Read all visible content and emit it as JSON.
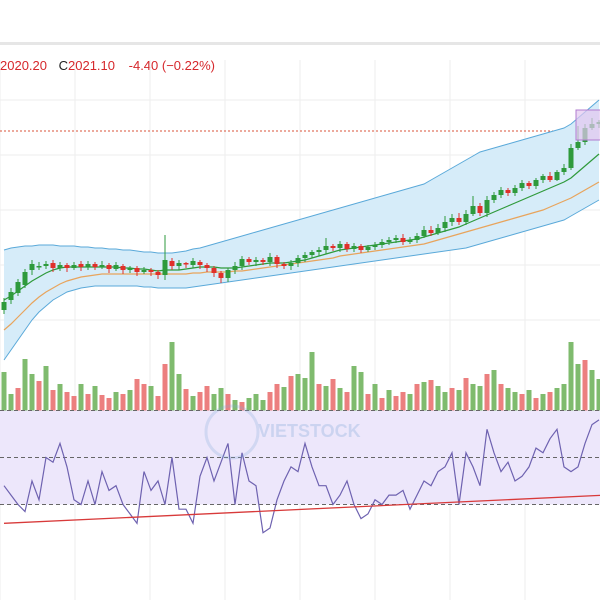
{
  "header": {
    "low_text": "2020.20",
    "close_prefix": "C",
    "close_text": "2021.10",
    "change_text": "-4.40 (−0.22%)"
  },
  "watermark": {
    "text": "VIETSTOCK"
  },
  "colors": {
    "up": "#2e9a3c",
    "down": "#e0302a",
    "vol_up": "#7fbb6e",
    "vol_down": "#ec7f7f",
    "band_fill": "#d6ecf9",
    "band_line": "#5aa9d9",
    "ma_fast": "#2f9a3b",
    "ma_slow": "#e8a45c",
    "rsi_line": "#6e62b0",
    "rsi_fill": "#ede7fb",
    "trend": "#d83a3a",
    "grid": "#eeeeee",
    "header_text": "#d6282c"
  },
  "chart_data": {
    "type": "candlestick",
    "candles": [
      [
        310,
        302,
        314,
        298
      ],
      [
        300,
        292,
        304,
        288
      ],
      [
        293,
        282,
        296,
        279
      ],
      [
        285,
        272,
        288,
        269
      ],
      [
        270,
        264,
        275,
        260
      ],
      [
        266,
        266,
        270,
        262
      ],
      [
        266,
        264,
        269,
        261
      ],
      [
        263,
        268,
        272,
        260
      ],
      [
        268,
        265,
        271,
        262
      ],
      [
        265,
        268,
        272,
        263
      ],
      [
        268,
        265,
        270,
        262
      ],
      [
        264,
        267,
        271,
        261
      ],
      [
        267,
        264,
        270,
        261
      ],
      [
        264,
        267,
        270,
        262
      ],
      [
        266,
        265,
        269,
        261
      ],
      [
        265,
        269,
        273,
        263
      ],
      [
        269,
        265,
        271,
        262
      ],
      [
        266,
        270,
        274,
        264
      ],
      [
        270,
        268,
        273,
        266
      ],
      [
        268,
        272,
        276,
        266
      ],
      [
        272,
        270,
        274,
        267
      ],
      [
        270,
        272,
        276,
        268
      ],
      [
        272,
        275,
        279,
        270
      ],
      [
        275,
        260,
        280,
        235
      ],
      [
        261,
        266,
        270,
        258
      ],
      [
        266,
        263,
        270,
        260
      ],
      [
        263,
        264,
        268,
        262
      ],
      [
        265,
        261,
        268,
        258
      ],
      [
        262,
        265,
        269,
        260
      ],
      [
        265,
        268,
        272,
        263
      ],
      [
        268,
        273,
        277,
        266
      ],
      [
        273,
        278,
        283,
        271
      ],
      [
        278,
        270,
        282,
        268
      ],
      [
        270,
        266,
        274,
        262
      ],
      [
        266,
        259,
        270,
        256
      ],
      [
        259,
        262,
        265,
        257
      ],
      [
        262,
        260,
        266,
        257
      ],
      [
        260,
        262,
        265,
        258
      ],
      [
        262,
        257,
        266,
        253
      ],
      [
        257,
        264,
        268,
        255
      ],
      [
        264,
        266,
        269,
        262
      ],
      [
        266,
        263,
        270,
        260
      ],
      [
        263,
        258,
        267,
        255
      ],
      [
        258,
        255,
        262,
        252
      ],
      [
        255,
        252,
        258,
        250
      ],
      [
        252,
        250,
        256,
        247
      ],
      [
        250,
        246,
        254,
        238
      ],
      [
        246,
        248,
        251,
        244
      ],
      [
        248,
        244,
        252,
        241
      ],
      [
        244,
        249,
        252,
        242
      ],
      [
        249,
        246,
        252,
        243
      ],
      [
        246,
        250,
        253,
        244
      ],
      [
        250,
        247,
        252,
        245
      ],
      [
        247,
        245,
        250,
        242
      ],
      [
        245,
        242,
        248,
        239
      ],
      [
        242,
        240,
        245,
        237
      ],
      [
        240,
        238,
        243,
        235
      ],
      [
        238,
        242,
        245,
        234
      ],
      [
        242,
        240,
        244,
        237
      ],
      [
        240,
        236,
        243,
        233
      ],
      [
        236,
        230,
        238,
        226
      ],
      [
        230,
        233,
        236,
        226
      ],
      [
        233,
        228,
        235,
        224
      ],
      [
        228,
        222,
        232,
        216
      ],
      [
        222,
        218,
        226,
        214
      ],
      [
        218,
        222,
        225,
        213
      ],
      [
        222,
        214,
        225,
        210
      ],
      [
        214,
        206,
        216,
        196
      ],
      [
        206,
        213,
        216,
        203
      ],
      [
        213,
        200,
        217,
        196
      ],
      [
        200,
        195,
        203,
        192
      ],
      [
        195,
        190,
        198,
        187
      ],
      [
        190,
        193,
        196,
        188
      ],
      [
        193,
        188,
        196,
        185
      ],
      [
        188,
        183,
        191,
        180
      ],
      [
        183,
        186,
        189,
        181
      ],
      [
        186,
        180,
        189,
        178
      ],
      [
        180,
        176,
        183,
        174
      ],
      [
        176,
        180,
        182,
        172
      ],
      [
        180,
        172,
        181,
        170
      ],
      [
        172,
        168,
        175,
        164
      ],
      [
        168,
        148,
        170,
        144
      ],
      [
        148,
        142,
        150,
        126
      ],
      [
        142,
        128,
        145,
        124
      ],
      [
        128,
        124,
        130,
        118
      ],
      [
        124,
        122,
        128,
        120
      ]
    ],
    "volume_up": [
      true,
      true,
      false,
      true,
      true,
      false,
      true,
      false,
      true,
      false,
      false,
      true,
      false,
      true,
      false,
      false,
      true,
      false,
      true,
      false,
      false,
      true,
      false,
      false,
      true,
      true,
      false,
      true,
      false,
      false,
      true,
      true,
      false,
      true,
      false,
      true,
      true,
      true,
      false,
      false,
      true,
      false,
      true,
      true,
      true,
      false,
      true,
      false,
      true,
      false,
      true,
      true,
      false,
      true,
      false,
      true,
      false,
      false,
      true,
      false,
      true,
      false,
      true,
      true,
      false,
      true,
      false,
      true,
      true,
      false,
      true,
      false,
      true,
      true,
      false,
      true,
      false,
      true,
      false,
      true,
      true,
      true,
      true,
      false,
      true,
      true
    ],
    "volume": [
      42,
      20,
      26,
      55,
      40,
      33,
      48,
      24,
      30,
      22,
      18,
      30,
      20,
      28,
      19,
      16,
      22,
      20,
      24,
      35,
      30,
      28,
      18,
      50,
      72,
      40,
      25,
      18,
      22,
      28,
      20,
      26,
      20,
      14,
      12,
      16,
      20,
      14,
      22,
      30,
      27,
      38,
      40,
      36,
      62,
      30,
      28,
      35,
      26,
      22,
      48,
      42,
      20,
      30,
      16,
      24,
      18,
      22,
      20,
      30,
      32,
      34,
      28,
      22,
      26,
      24,
      36,
      30,
      28,
      40,
      44,
      30,
      26,
      22,
      20,
      24,
      16,
      20,
      22,
      26,
      30,
      72,
      50,
      54,
      44,
      35
    ],
    "rsi": [
      38,
      34,
      30,
      27,
      40,
      32,
      50,
      48,
      56,
      46,
      32,
      30,
      40,
      30,
      44,
      36,
      38,
      30,
      26,
      22,
      44,
      36,
      40,
      30,
      50,
      28,
      28,
      22,
      42,
      50,
      40,
      48,
      56,
      30,
      52,
      40,
      38,
      18,
      20,
      32,
      40,
      46,
      44,
      56,
      46,
      38,
      38,
      30,
      34,
      40,
      30,
      24,
      26,
      32,
      30,
      34,
      34,
      36,
      28,
      34,
      40,
      38,
      44,
      46,
      52,
      30,
      52,
      46,
      38,
      62,
      52,
      44,
      48,
      40,
      42,
      46,
      54,
      52,
      58,
      62,
      46,
      44,
      46,
      56,
      64,
      66
    ],
    "rsi_levels": [
      70,
      50,
      30
    ],
    "bollinger_upper": [
      250,
      248,
      247,
      246,
      246,
      245,
      245,
      245,
      246,
      246,
      246,
      247,
      247,
      248,
      248,
      249,
      249,
      250,
      250,
      251,
      252,
      252,
      253,
      253,
      253,
      252,
      251,
      249,
      248,
      246,
      244,
      242,
      240,
      238,
      236,
      234,
      232,
      230,
      228,
      226,
      224,
      222,
      220,
      218,
      216,
      214,
      212,
      210,
      208,
      206,
      204,
      202,
      200,
      198,
      196,
      194,
      192,
      190,
      188,
      186,
      184,
      180,
      176,
      172,
      168,
      164,
      160,
      156,
      152,
      150,
      148,
      146,
      144,
      142,
      140,
      138,
      136,
      134,
      132,
      130,
      128,
      124,
      118,
      112,
      106,
      100
    ],
    "bollinger_lower": [
      360,
      350,
      340,
      330,
      320,
      312,
      306,
      300,
      296,
      292,
      290,
      288,
      287,
      286,
      286,
      286,
      286,
      286,
      286,
      286,
      287,
      287,
      288,
      288,
      288,
      288,
      288,
      287,
      286,
      285,
      284,
      283,
      282,
      281,
      280,
      279,
      278,
      277,
      276,
      275,
      274,
      273,
      272,
      271,
      270,
      269,
      268,
      267,
      266,
      265,
      264,
      263,
      262,
      261,
      260,
      259,
      258,
      257,
      256,
      255,
      254,
      253,
      252,
      251,
      250,
      249,
      248,
      246,
      244,
      242,
      240,
      238,
      236,
      234,
      232,
      230,
      228,
      226,
      224,
      222,
      220,
      216,
      212,
      208,
      204,
      200
    ],
    "ma_fast": [
      300,
      296,
      291,
      286,
      281,
      277,
      273,
      270,
      268,
      267,
      267,
      267,
      267,
      267,
      267,
      267,
      267,
      268,
      268,
      269,
      269,
      270,
      271,
      270,
      270,
      270,
      269,
      268,
      267,
      267,
      267,
      268,
      268,
      268,
      267,
      266,
      265,
      264,
      263,
      263,
      263,
      262,
      261,
      260,
      258,
      256,
      254,
      252,
      250,
      249,
      248,
      247,
      246,
      245,
      244,
      243,
      242,
      241,
      240,
      239,
      237,
      235,
      233,
      231,
      229,
      227,
      224,
      221,
      218,
      215,
      212,
      209,
      206,
      203,
      200,
      197,
      194,
      191,
      188,
      185,
      182,
      178,
      172,
      166,
      160,
      154
    ],
    "ma_slow": [
      330,
      324,
      317,
      310,
      303,
      297,
      292,
      288,
      284,
      281,
      279,
      277,
      276,
      275,
      274,
      274,
      274,
      274,
      274,
      274,
      274,
      274,
      274,
      274,
      274,
      274,
      274,
      273,
      273,
      272,
      272,
      272,
      272,
      271,
      271,
      270,
      269,
      268,
      267,
      266,
      265,
      264,
      263,
      262,
      261,
      260,
      259,
      258,
      256,
      255,
      254,
      253,
      252,
      251,
      250,
      249,
      248,
      247,
      246,
      245,
      244,
      242,
      240,
      238,
      236,
      234,
      232,
      230,
      228,
      226,
      224,
      222,
      220,
      218,
      216,
      214,
      212,
      210,
      207,
      204,
      201,
      198,
      194,
      190,
      186,
      182
    ],
    "rsi_trendline": [
      [
        0,
        22
      ],
      [
        86,
        34
      ]
    ]
  }
}
